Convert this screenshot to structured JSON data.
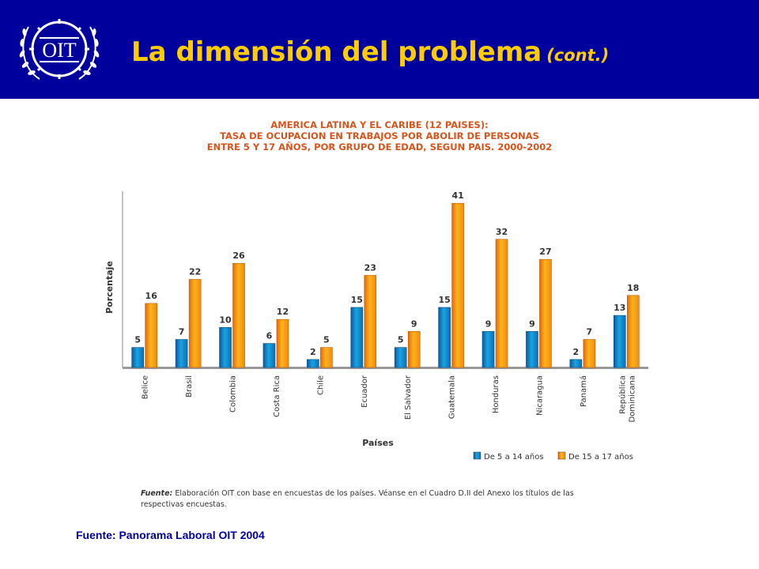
{
  "header": {
    "logo_text": "OIT",
    "title": "La dimensión del problema",
    "title_suffix": "(cont.)",
    "bg_color": "#00009c",
    "title_color": "#ffcc00"
  },
  "chart_data": {
    "type": "bar",
    "title_lines": [
      "AMERICA LATINA Y EL CARIBE (12 PAISES):",
      "TASA DE OCUPACION EN TRABAJOS POR ABOLIR DE PERSONAS",
      "ENTRE 5 Y 17 AÑOS, POR GRUPO DE EDAD, SEGUN PAIS. 2000-2002"
    ],
    "xlabel": "Países",
    "ylabel": "Porcentaje",
    "categories": [
      [
        "Belice"
      ],
      [
        "Brasil"
      ],
      [
        "Colombia"
      ],
      [
        "Costa Rica"
      ],
      [
        "Chile"
      ],
      [
        "Ecuador"
      ],
      [
        "El Salvador"
      ],
      [
        "Guatemala"
      ],
      [
        "Honduras"
      ],
      [
        "Nicaragua"
      ],
      [
        "Panamá"
      ],
      [
        "República",
        "Dominicana"
      ]
    ],
    "series": [
      {
        "name": "De 5 a 14 años",
        "color": "#1ba3e0",
        "values": [
          5,
          7,
          10,
          6,
          2,
          15,
          5,
          15,
          9,
          9,
          2,
          13
        ]
      },
      {
        "name": "De 15 a 17 años",
        "color": "#ffb31a",
        "values": [
          16,
          22,
          26,
          12,
          5,
          23,
          9,
          41,
          32,
          27,
          7,
          18
        ]
      }
    ],
    "ylim": [
      0,
      44
    ],
    "grid": false,
    "legend_position": "bottom-right"
  },
  "source_note": {
    "label": "Fuente:",
    "text": "Elaboración OIT con base en encuestas de los países. Véanse en el Cuadro D.II del Anexo los títulos de las respectivas encuestas."
  },
  "footer": {
    "text": "Fuente: Panorama Laboral OIT 2004"
  }
}
